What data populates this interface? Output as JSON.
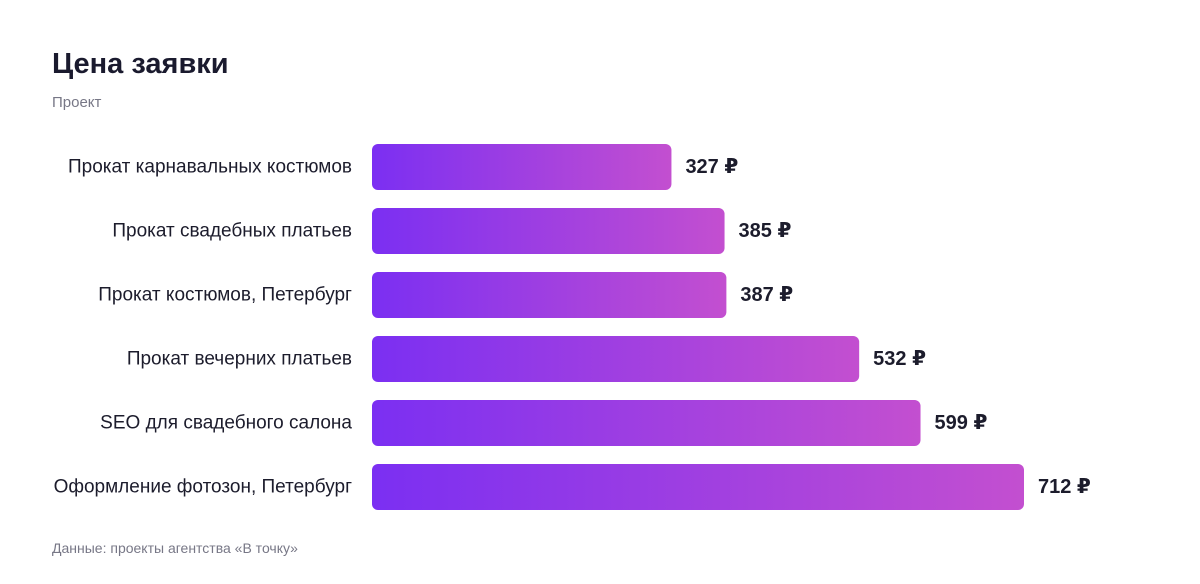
{
  "header": {
    "title": "Цена заявки",
    "subtitle": "Проект"
  },
  "footer": {
    "source": "Данные: проекты агентства «В точку»"
  },
  "colors": {
    "bar_start": "#7b2ff2",
    "bar_end": "#c34fd0",
    "text": "#1c1c2c",
    "muted": "#777786"
  },
  "chart_data": {
    "type": "bar",
    "orientation": "horizontal",
    "categories": [
      "Прокат карнавальных костюмов",
      "Прокат свадебных платьев",
      "Прокат костюмов, Петербург",
      "Прокат вечерних платьев",
      "SEO для свадебного салона",
      "Оформление фотозон, Петербург"
    ],
    "values": [
      327,
      385,
      387,
      532,
      599,
      712
    ],
    "value_labels": [
      "327 ₽",
      "385 ₽",
      "387 ₽",
      "532 ₽",
      "599 ₽",
      "712 ₽"
    ],
    "unit": "₽",
    "xlim": [
      0,
      712
    ],
    "grid": false,
    "legend": false
  }
}
